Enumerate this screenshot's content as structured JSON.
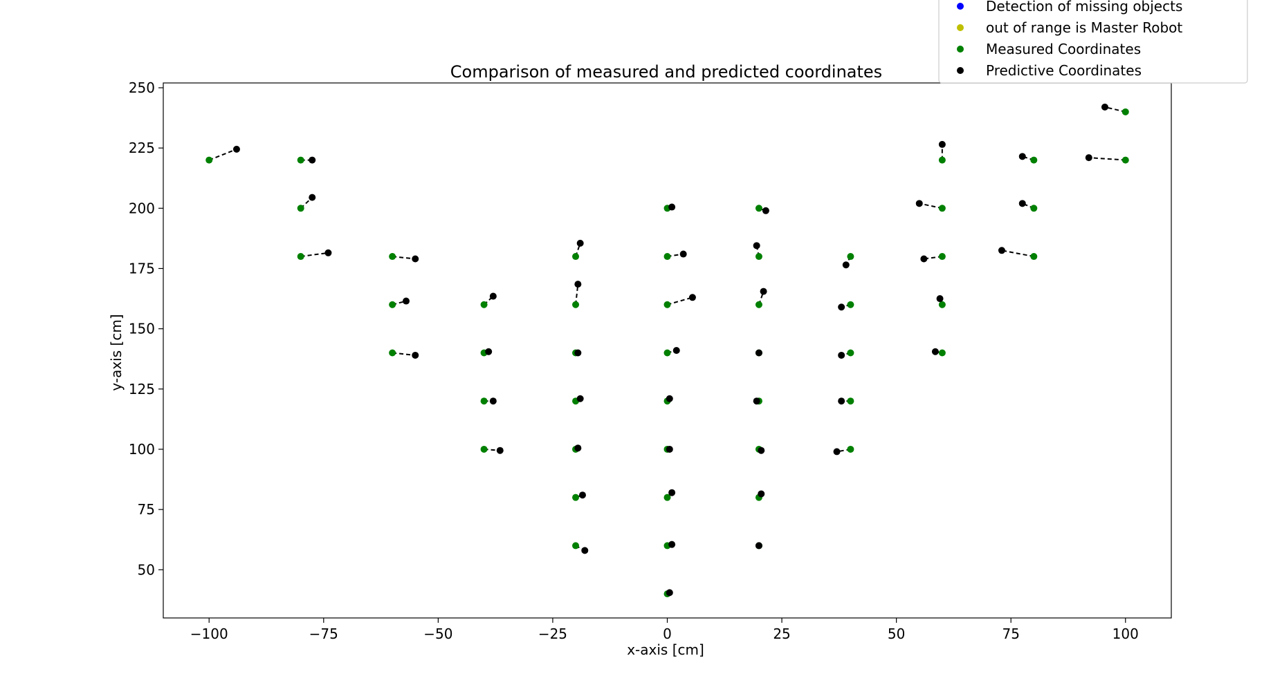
{
  "chart_data": {
    "type": "scatter",
    "title": "Comparison of measured and predicted coordinates",
    "xlabel": "x-axis [cm]",
    "ylabel": "y-axis [cm]",
    "xlim": [
      -110,
      110
    ],
    "ylim": [
      30,
      252
    ],
    "xticks": [
      -100,
      -75,
      -50,
      -25,
      0,
      25,
      50,
      75,
      100
    ],
    "xtick_labels": [
      "−100",
      "−75",
      "−50",
      "−25",
      "0",
      "25",
      "50",
      "75",
      "100"
    ],
    "yticks": [
      50,
      75,
      100,
      125,
      150,
      175,
      200,
      225,
      250
    ],
    "ytick_labels": [
      "50",
      "75",
      "100",
      "125",
      "150",
      "175",
      "200",
      "225",
      "250"
    ],
    "grid": false,
    "legend_position": "top-right",
    "legend": [
      {
        "label": "Detection of missing objects",
        "color": "#0000ff"
      },
      {
        "label": "out of range is Master Robot",
        "color": "#bfbf00"
      },
      {
        "label": "Measured Coordinates",
        "color": "#008000"
      },
      {
        "label": "Predictive Coordinates",
        "color": "#000000"
      }
    ],
    "colors": {
      "measured": "#008000",
      "predicted": "#000000",
      "connector": "#000000"
    },
    "pairs": [
      {
        "measured": [
          -100,
          220
        ],
        "predicted": [
          -94,
          224.5
        ]
      },
      {
        "measured": [
          -80,
          220
        ],
        "predicted": [
          -77.5,
          220
        ]
      },
      {
        "measured": [
          -80,
          200
        ],
        "predicted": [
          -77.5,
          204.5
        ]
      },
      {
        "measured": [
          -80,
          180
        ],
        "predicted": [
          -74,
          181.5
        ]
      },
      {
        "measured": [
          -60,
          180
        ],
        "predicted": [
          -55,
          179
        ]
      },
      {
        "measured": [
          -60,
          160
        ],
        "predicted": [
          -57,
          161.5
        ]
      },
      {
        "measured": [
          -60,
          140
        ],
        "predicted": [
          -55,
          139
        ]
      },
      {
        "measured": [
          -40,
          160
        ],
        "predicted": [
          -38,
          163.5
        ]
      },
      {
        "measured": [
          -40,
          140
        ],
        "predicted": [
          -39,
          140.5
        ]
      },
      {
        "measured": [
          -40,
          120
        ],
        "predicted": [
          -38,
          120
        ]
      },
      {
        "measured": [
          -40,
          100
        ],
        "predicted": [
          -36.5,
          99.5
        ]
      },
      {
        "measured": [
          -20,
          180
        ],
        "predicted": [
          -19,
          185.5
        ]
      },
      {
        "measured": [
          -20,
          160
        ],
        "predicted": [
          -19.5,
          168.5
        ]
      },
      {
        "measured": [
          -20,
          140
        ],
        "predicted": [
          -19.5,
          140
        ]
      },
      {
        "measured": [
          -20,
          120
        ],
        "predicted": [
          -19,
          121
        ]
      },
      {
        "measured": [
          -20,
          100
        ],
        "predicted": [
          -19.5,
          100.5
        ]
      },
      {
        "measured": [
          -20,
          80
        ],
        "predicted": [
          -18.5,
          81
        ]
      },
      {
        "measured": [
          -20,
          60
        ],
        "predicted": [
          -18,
          58
        ]
      },
      {
        "measured": [
          0,
          200
        ],
        "predicted": [
          1,
          200.5
        ]
      },
      {
        "measured": [
          0,
          180
        ],
        "predicted": [
          3.5,
          181
        ]
      },
      {
        "measured": [
          0,
          160
        ],
        "predicted": [
          5.5,
          163
        ]
      },
      {
        "measured": [
          0,
          140
        ],
        "predicted": [
          2,
          141
        ]
      },
      {
        "measured": [
          0,
          120
        ],
        "predicted": [
          0.5,
          121
        ]
      },
      {
        "measured": [
          0,
          100
        ],
        "predicted": [
          0.5,
          100
        ]
      },
      {
        "measured": [
          0,
          80
        ],
        "predicted": [
          1,
          82
        ]
      },
      {
        "measured": [
          0,
          60
        ],
        "predicted": [
          1,
          60.5
        ]
      },
      {
        "measured": [
          0,
          40
        ],
        "predicted": [
          0.5,
          40.5
        ]
      },
      {
        "measured": [
          20,
          200
        ],
        "predicted": [
          21.5,
          199
        ]
      },
      {
        "measured": [
          20,
          180
        ],
        "predicted": [
          19.5,
          184.5
        ]
      },
      {
        "measured": [
          20,
          160
        ],
        "predicted": [
          21,
          165.5
        ]
      },
      {
        "measured": [
          20,
          140
        ],
        "predicted": [
          20,
          140
        ]
      },
      {
        "measured": [
          20,
          120
        ],
        "predicted": [
          19.5,
          120
        ]
      },
      {
        "measured": [
          20,
          100
        ],
        "predicted": [
          20.5,
          99.5
        ]
      },
      {
        "measured": [
          20,
          80
        ],
        "predicted": [
          20.5,
          81.5
        ]
      },
      {
        "measured": [
          20,
          60
        ],
        "predicted": [
          20,
          60
        ]
      },
      {
        "measured": [
          40,
          180
        ],
        "predicted": [
          39,
          176.5
        ]
      },
      {
        "measured": [
          40,
          160
        ],
        "predicted": [
          38,
          159
        ]
      },
      {
        "measured": [
          40,
          140
        ],
        "predicted": [
          38,
          139
        ]
      },
      {
        "measured": [
          40,
          120
        ],
        "predicted": [
          38,
          120
        ]
      },
      {
        "measured": [
          40,
          100
        ],
        "predicted": [
          37,
          99
        ]
      },
      {
        "measured": [
          60,
          220
        ],
        "predicted": [
          60,
          226.5
        ]
      },
      {
        "measured": [
          60,
          200
        ],
        "predicted": [
          55,
          202
        ]
      },
      {
        "measured": [
          60,
          180
        ],
        "predicted": [
          56,
          179
        ]
      },
      {
        "measured": [
          60,
          160
        ],
        "predicted": [
          59.5,
          162.5
        ]
      },
      {
        "measured": [
          60,
          140
        ],
        "predicted": [
          58.5,
          140.5
        ]
      },
      {
        "measured": [
          80,
          220
        ],
        "predicted": [
          77.5,
          221.5
        ]
      },
      {
        "measured": [
          80,
          200
        ],
        "predicted": [
          77.5,
          202
        ]
      },
      {
        "measured": [
          80,
          180
        ],
        "predicted": [
          73,
          182.5
        ]
      },
      {
        "measured": [
          100,
          240
        ],
        "predicted": [
          95.5,
          242
        ]
      },
      {
        "measured": [
          100,
          220
        ],
        "predicted": [
          92,
          221
        ]
      }
    ]
  }
}
